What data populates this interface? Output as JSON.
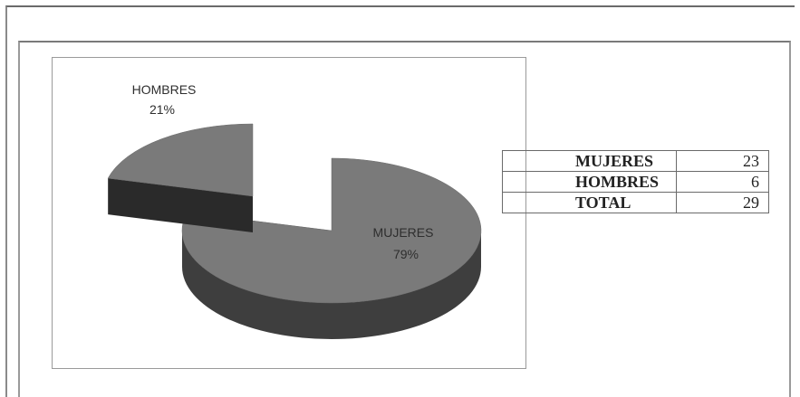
{
  "chart_data": {
    "type": "pie",
    "categories": [
      "MUJERES",
      "HOMBRES"
    ],
    "values": [
      79,
      21
    ],
    "labels": [
      {
        "category": "MUJERES",
        "percent": "79%"
      },
      {
        "category": "HOMBRES",
        "percent": "21%"
      }
    ],
    "exploded": "HOMBRES",
    "style": "3d",
    "colors": {
      "top": "#7a7a7a",
      "side": "#3e3e3e",
      "side_dark": "#2a2a2a"
    }
  },
  "table": {
    "rows": [
      {
        "label": "MUJERES",
        "value": "23"
      },
      {
        "label": "HOMBRES",
        "value": "6"
      },
      {
        "label": "TOTAL",
        "value": "29"
      }
    ]
  }
}
